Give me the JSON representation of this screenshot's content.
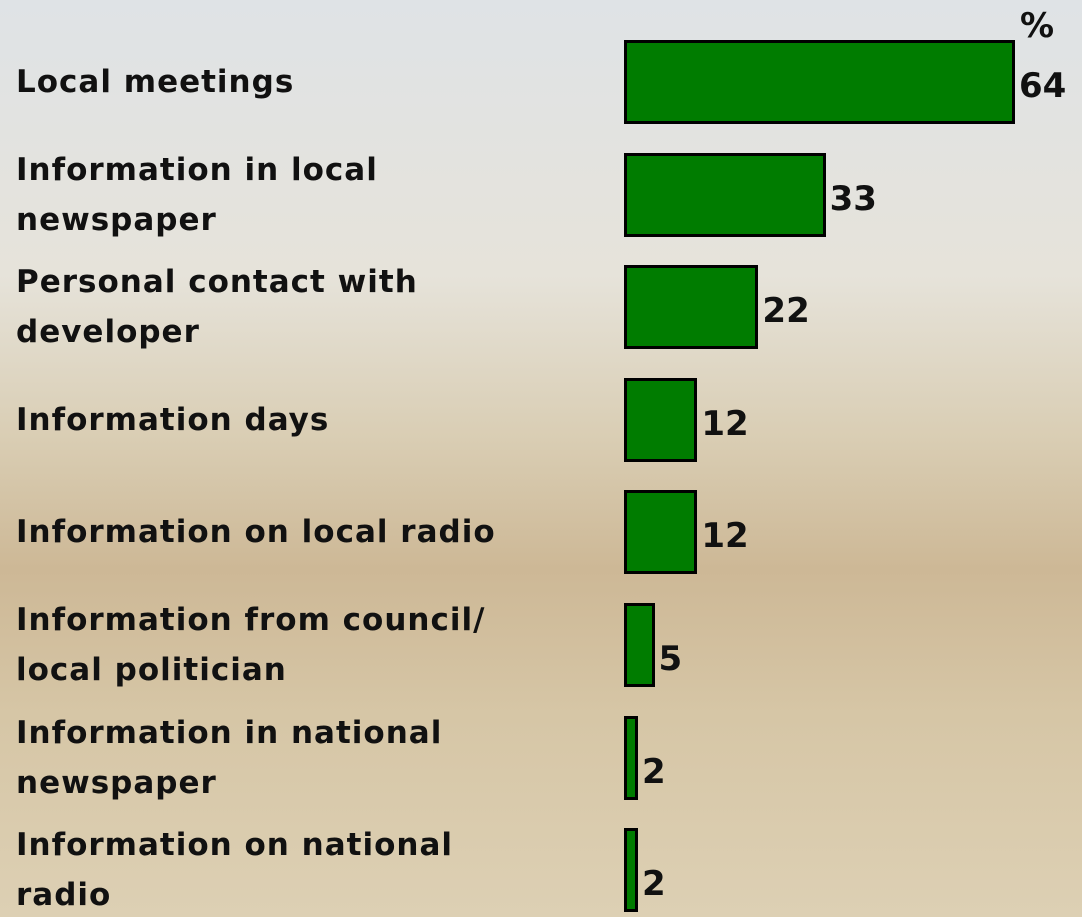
{
  "chart_data": {
    "type": "bar",
    "orientation": "horizontal",
    "unit": "%",
    "categories": [
      "Local meetings",
      "Information in local\nnewspaper",
      "Personal contact with\ndeveloper",
      "Information days",
      "Information on local radio",
      "Information from council/\nlocal politician",
      "Information in national\nnewspaper",
      "Information on national\nradio"
    ],
    "values": [
      64,
      33,
      22,
      12,
      12,
      5,
      2,
      2
    ],
    "color": "#007c00"
  }
}
